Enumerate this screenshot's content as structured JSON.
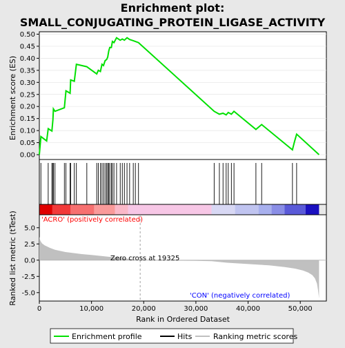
{
  "chart_data": {
    "type": "line",
    "title": "Enrichment plot: SMALL_CONJUGATING_PROTEIN_LIGASE_ACTIVITY",
    "top_panel": {
      "ylabel": "Enrichment score (ES)",
      "ylim": [
        -0.02,
        0.51
      ],
      "yticks": [
        "0.00",
        "0.05",
        "0.10",
        "0.15",
        "0.20",
        "0.25",
        "0.30",
        "0.35",
        "0.40",
        "0.45",
        "0.50"
      ],
      "series": [
        {
          "name": "Enrichment profile",
          "color": "#00e000",
          "x": [
            0,
            300,
            1400,
            1700,
            2400,
            2600,
            2700,
            3000,
            4800,
            5100,
            5900,
            6000,
            6700,
            7100,
            9100,
            11000,
            11300,
            11700,
            12000,
            12300,
            12600,
            12900,
            13100,
            13300,
            13500,
            13800,
            14000,
            14300,
            14800,
            15500,
            15900,
            16300,
            16800,
            17300,
            18000,
            19000,
            33500,
            34500,
            35200,
            35800,
            36200,
            36800,
            37300,
            41500,
            42600,
            48500,
            48900,
            49300,
            53600
          ],
          "y": [
            0.0,
            0.075,
            0.057,
            0.108,
            0.098,
            0.145,
            0.19,
            0.18,
            0.195,
            0.265,
            0.255,
            0.31,
            0.305,
            0.375,
            0.365,
            0.335,
            0.35,
            0.345,
            0.375,
            0.37,
            0.39,
            0.395,
            0.405,
            0.43,
            0.445,
            0.445,
            0.47,
            0.465,
            0.485,
            0.475,
            0.48,
            0.475,
            0.485,
            0.478,
            0.473,
            0.465,
            0.18,
            0.168,
            0.172,
            0.165,
            0.175,
            0.168,
            0.18,
            0.105,
            0.125,
            0.02,
            0.055,
            0.085,
            0.0
          ]
        }
      ]
    },
    "hits": [
      300,
      1700,
      2400,
      2600,
      2700,
      3000,
      4800,
      5100,
      5900,
      6000,
      6700,
      7100,
      9100,
      11000,
      11300,
      11700,
      12000,
      12300,
      12600,
      12900,
      13100,
      13300,
      13500,
      13800,
      14000,
      14300,
      14800,
      15500,
      15900,
      16300,
      16800,
      17300,
      18000,
      18400,
      19000,
      33500,
      34500,
      35200,
      35800,
      36200,
      36800,
      37300,
      41500,
      42600,
      48500,
      49300
    ],
    "bottom_panel": {
      "ylabel": "Ranked list metric (tTest)",
      "ylim": [
        -6.3,
        7.0
      ],
      "yticks": [
        "-5.0",
        "-2.5",
        "0.0",
        "2.5",
        "5.0"
      ],
      "series": [
        {
          "name": "Ranking metric scores",
          "color": "#c0c0c0",
          "x": [
            0,
            200,
            500,
            1000,
            2000,
            3000,
            5000,
            8000,
            10000,
            13000,
            16000,
            19325,
            22000,
            26000,
            30000,
            33000,
            36000,
            40000,
            44000,
            47000,
            49000,
            50500,
            51500,
            52300,
            52800,
            53200,
            53400,
            53600
          ],
          "y": [
            3.6,
            3.0,
            2.6,
            2.3,
            1.9,
            1.6,
            1.25,
            0.95,
            0.8,
            0.55,
            0.3,
            0.0,
            -0.05,
            -0.08,
            -0.1,
            -0.15,
            -0.4,
            -0.6,
            -0.8,
            -1.05,
            -1.3,
            -1.6,
            -1.9,
            -2.3,
            -2.8,
            -3.6,
            -4.6,
            -5.9
          ]
        }
      ],
      "zero_cross_label": "Zero cross at 19325",
      "pos_label": "'ACRO' (positively correlated)",
      "neg_label": "'CON' (negatively correlated)",
      "zero_cross_x": 19325
    },
    "xlabel": "Rank in Ordered Dataset",
    "xlim": [
      0,
      55000
    ],
    "xticks": [
      "0",
      "10,000",
      "20,000",
      "30,000",
      "40,000",
      "50,000"
    ],
    "legend": {
      "placement": "bottom",
      "entries": [
        "Enrichment profile",
        "Hits",
        "Ranking metric scores"
      ]
    },
    "colors": {
      "profile": "#00e000",
      "hit": "#000000",
      "metric": "#c0c0c0",
      "pos_text": "#ff0000",
      "neg_text": "#0000ff",
      "zero_text": "#000000"
    }
  }
}
